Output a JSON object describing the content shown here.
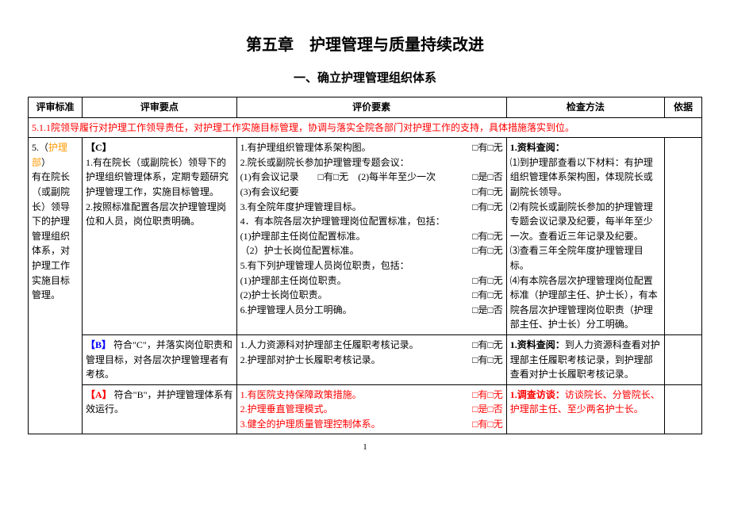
{
  "title": "第五章　护理管理与质量持续改进",
  "subtitle": "一、确立护理管理组织体系",
  "headers": {
    "c1": "评审标准",
    "c2": "评审要点",
    "c3": "评价要素",
    "c4": "检查方法",
    "c5": "依据"
  },
  "section_511": "5.1.1院领导履行对护理工作领导责任，对护理工作实施目标管理，协调与落实全院各部门对护理工作的支持，具体措施落实到位。",
  "std": {
    "num": "5.（",
    "dept": "护理部",
    "close": "）",
    "body": "有在院长（或副院长）领导下的护理管理组织体系，对护理工作实施目标管理。"
  },
  "rowC": {
    "label": "【C】",
    "p1": "1.有在院长（或副院长）领导下的护理组织管理体系，定期专题研究护理管理工作，实施目标管理。",
    "p2": "2.按照标准配置各层次护理管理岗位和人员，岗位职责明确。",
    "e1": "1.有护理组织管理体系架构图。",
    "e2": "2.院长或副院长参加护理管理专题会议：",
    "e2a": "(1)有会议记录",
    "e2a_mid": "(2)每半年至少一次",
    "e2b": "(3)有会议纪要",
    "e3": "3.有全院年度护理管理目标。",
    "e4": "4．有本院各层次护理管理岗位配置标准，包括：",
    "e4a": "(1)护理部主任岗位配置标准。",
    "e4b": " （2）护士长岗位配置标准。",
    "e5": "5.有下列护理管理人员岗位职责，包括：",
    "e5a": "(1)护理部主任岗位职责。",
    "e5b": "(2)护士长岗位职责。",
    "e6": "6.护理管理人员分工明确。",
    "chk_yn": "□有□无",
    "chk_yes": "□是□否",
    "m_title": "1.资料查阅：",
    "m1": "⑴到护理部查看以下材料：有护理组织管理体系架构图，体现院长或副院长领导。",
    "m2": "⑵有院长或副院长参加的护理管理专题会议记录及纪要，每半年至少一次。查看近三年记录及纪要。",
    "m3": "⑶查看三年全院年度护理管理目标。",
    "m4": "⑷有本院各层次护理管理岗位配置标准（护理部主任、护士长），有本院各层次护理管理岗位职责（护理部主任、护士长）分工明确。"
  },
  "rowB": {
    "label": "【B】",
    "p": "符合\"C\"，并落实岗位职责和管理目标，对各层次护理管理者有考核。",
    "e1": "1.人力资源科对护理部主任履职考核记录。",
    "e2": "2.护理部对护士长履职考核记录。",
    "chk": "□有□无",
    "m_title": "1.资料查阅：",
    "m": "到人力资源科查看对护理部主任履职考核记录，到护理部查看对护士长履职考核记录。"
  },
  "rowA": {
    "label": "【A】",
    "p": "符合\"B\"，并护理管理体系有效运行。",
    "e1": "1.有医院支持保障政策措施。",
    "e2": "2.护理垂直管理模式。",
    "e3": "3.健全的护理质量管理控制体系。",
    "chk_yn": "□有□无",
    "chk_yes": "□是□否",
    "m_title": "1.调查访谈：",
    "m": "访谈院长、分管院长、护理部主任、至少两名护士长。"
  },
  "pagenum": "1"
}
